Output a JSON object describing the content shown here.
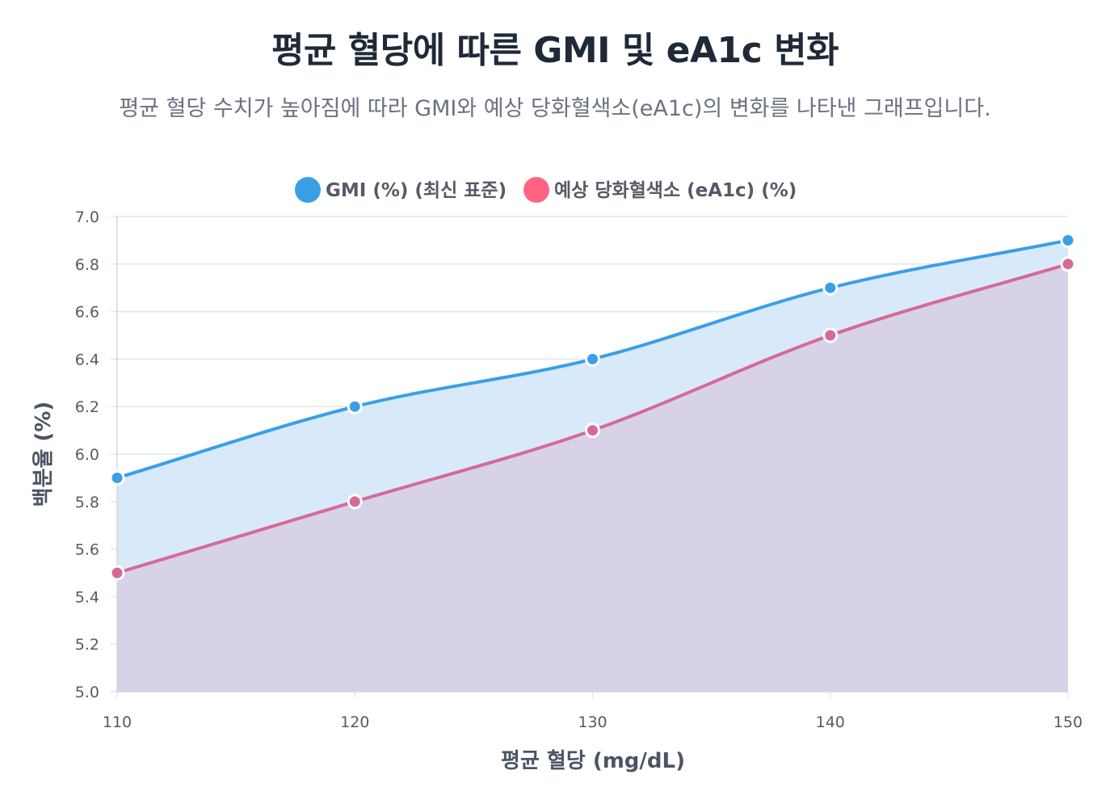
{
  "header": {
    "title": "평균 혈당에 따른 GMI 및 eA1c 변화",
    "subtitle": "평균 혈당 수치가 높아짐에 따라 GMI와 예상 당화혈색소(eA1c)의 변화를 나타낸 그래프입니다."
  },
  "chart_data": {
    "type": "area",
    "x": [
      110,
      120,
      130,
      140,
      150
    ],
    "xlabel": "평균 혈당 (mg/dL)",
    "ylabel": "백분율 (%)",
    "ylim": [
      5.0,
      7.0
    ],
    "xlim": [
      110,
      150
    ],
    "y_ticks": [
      "5.0",
      "5.2",
      "5.4",
      "5.6",
      "5.8",
      "6.0",
      "6.2",
      "6.4",
      "6.6",
      "6.8",
      "7.0"
    ],
    "x_ticks": [
      "110",
      "120",
      "130",
      "140",
      "150"
    ],
    "grid": true,
    "legend_position": "top",
    "series": [
      {
        "name": "GMI (%) (최신 표준)",
        "values": [
          5.9,
          6.2,
          6.4,
          6.7,
          6.9
        ],
        "line_color": "#3b9fe6",
        "fill_color": "#d8eafa"
      },
      {
        "name": "예상 당화혈색소 (eA1c) (%)",
        "values": [
          5.5,
          5.8,
          6.1,
          6.5,
          6.8
        ],
        "line_color": "#d56a97",
        "fill_color": "#d7d2e8",
        "legend_color": "#ff6384"
      }
    ]
  }
}
